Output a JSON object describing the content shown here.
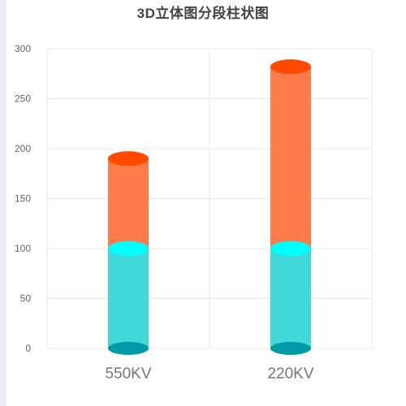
{
  "chart_data": {
    "type": "bar",
    "title": "3D立体图分段柱状图",
    "stacked": true,
    "style": "3d-cylinder",
    "categories": [
      "550KV",
      "220KV"
    ],
    "series": [
      {
        "values": [
          100,
          100
        ],
        "color": "#40d8d8",
        "top_color": "#00ffff",
        "bottom_color": "#009aa6"
      },
      {
        "values": [
          90,
          182
        ],
        "color": "#ff7c4a",
        "top_color": "#ff4a00"
      }
    ],
    "ylim": [
      0,
      300
    ],
    "yticks": [
      0,
      50,
      100,
      150,
      200,
      250,
      300
    ],
    "grid": true,
    "legend": "none"
  }
}
